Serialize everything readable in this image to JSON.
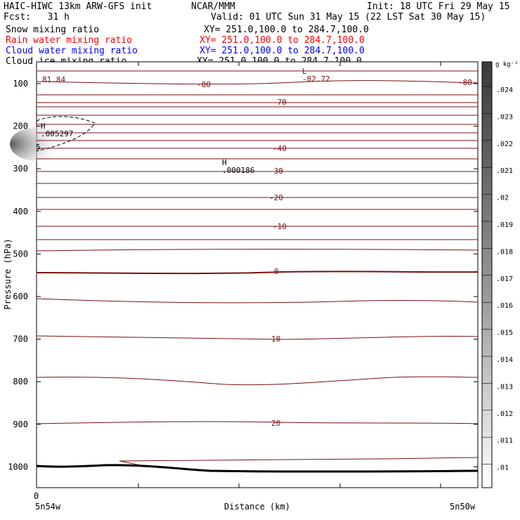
{
  "header": {
    "model": "HAIC-HIWC 13km ARW-GFS init",
    "org": "NCAR/MMM",
    "init": "Init: 18 UTC Fri 29 May 15",
    "fcst": "Fcst:   31 h",
    "valid": "Valid: 01 UTC Sun 31 May 15 (22 LST Sat 30 May 15)"
  },
  "fields": [
    {
      "name": "Snow mixing ratio",
      "xy": "XY= 251.0,100.0 to 284.7,100.0",
      "color": "#000000"
    },
    {
      "name": "Rain water mixing ratio",
      "xy": "XY= 251.0,100.0 to 284.7,100.0",
      "color": "#ff0000"
    },
    {
      "name": "Cloud water mixing ratio",
      "xy": "XY= 251.0,100.0 to 284.7,100.0",
      "color": "#0000ff"
    },
    {
      "name": "Cloud ice mixing ratio",
      "xy": "XY= 251.0,100.0 to 284.7,100.0",
      "color": "#000000"
    }
  ],
  "chart_data": {
    "type": "contour",
    "xlabel": "Distance (km)",
    "ylabel": "Pressure (hPa)",
    "x_start_label": "0",
    "x_left_label": "5n54w",
    "x_right_label": "5n50w",
    "y_ticks": [
      100,
      200,
      300,
      400,
      500,
      600,
      700,
      800,
      900,
      1000
    ],
    "ylim": [
      1050,
      55
    ],
    "colorbar": {
      "unit": "g kg⁻¹",
      "ticks": [
        ".024",
        ".023",
        ".022",
        ".021",
        ".02",
        ".019",
        ".018",
        ".017",
        ".016",
        ".015",
        ".014",
        ".013",
        ".012",
        ".011",
        ".01"
      ]
    },
    "temperature_labels": [
      "-80",
      "-82.72",
      "-80",
      "-70",
      "-40",
      "-30",
      "-20",
      "-10",
      "0",
      "10",
      "20"
    ],
    "annotations": [
      {
        "text": "H",
        "value": ".005297"
      },
      {
        "text": "H",
        "value": ".000186"
      },
      {
        "text": "L",
        "value": "-82.72"
      },
      {
        "text": "81.84"
      },
      {
        "text": "5"
      }
    ]
  }
}
